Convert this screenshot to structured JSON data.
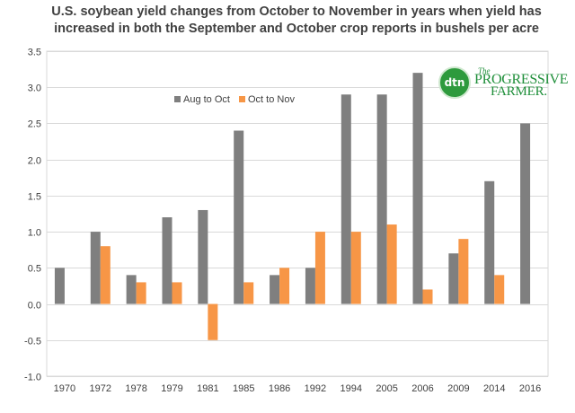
{
  "chart_data": {
    "type": "bar",
    "title_line1": "U.S. soybean yield changes from October to November in years when yield has",
    "title_line2": "increased in both the September and October crop reports in bushels per acre",
    "categories": [
      "1970",
      "1972",
      "1978",
      "1979",
      "1981",
      "1985",
      "1986",
      "1992",
      "1994",
      "2005",
      "2006",
      "2009",
      "2014",
      "2016"
    ],
    "series": [
      {
        "name": "Aug to Oct",
        "color": "#7f7f7f",
        "values": [
          0.5,
          1.0,
          0.4,
          1.2,
          1.3,
          2.4,
          0.4,
          0.5,
          2.9,
          2.9,
          3.2,
          0.7,
          1.7,
          2.5
        ]
      },
      {
        "name": "Oct to Nov",
        "color": "#f79646",
        "values": [
          null,
          0.8,
          0.3,
          0.3,
          -0.5,
          0.3,
          0.5,
          1.0,
          1.0,
          1.1,
          0.2,
          0.9,
          0.4,
          null
        ]
      }
    ],
    "ylim": [
      -1.0,
      3.5
    ],
    "yticks": [
      "-1.0",
      "-0.5",
      "0.0",
      "0.5",
      "1.0",
      "1.5",
      "2.0",
      "2.5",
      "3.0",
      "3.5"
    ],
    "legend_position": "top-left",
    "grid": true
  },
  "logo": {
    "badge": "dtn",
    "the": "The",
    "line1": "PROGRESSIVE",
    "line2": "FARMER."
  }
}
